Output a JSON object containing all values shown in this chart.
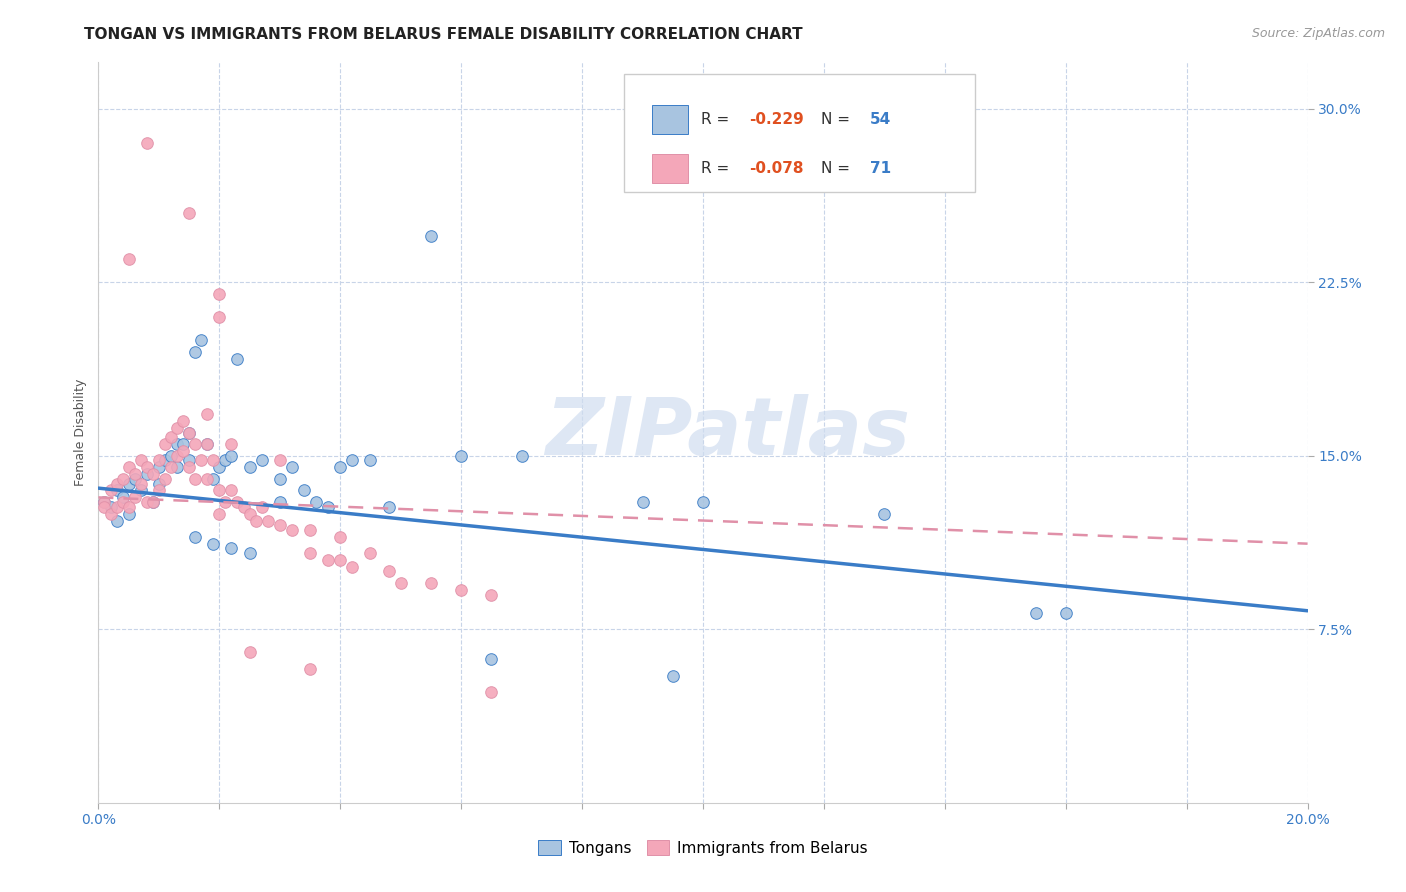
{
  "title": "TONGAN VS IMMIGRANTS FROM BELARUS FEMALE DISABILITY CORRELATION CHART",
  "source": "Source: ZipAtlas.com",
  "ylabel": "Female Disability",
  "xlim": [
    0.0,
    0.2
  ],
  "ylim": [
    0.0,
    0.32
  ],
  "yticks": [
    0.075,
    0.15,
    0.225,
    0.3
  ],
  "ytick_labels": [
    "7.5%",
    "15.0%",
    "22.5%",
    "30.0%"
  ],
  "xticks": [
    0.0,
    0.02,
    0.04,
    0.06,
    0.08,
    0.1,
    0.12,
    0.14,
    0.16,
    0.18,
    0.2
  ],
  "blue_R": -0.229,
  "blue_N": 54,
  "pink_R": -0.078,
  "pink_N": 71,
  "blue_color": "#a8c4e0",
  "pink_color": "#f4a7b9",
  "blue_line_color": "#3a7cc7",
  "pink_line_color": "#e090a8",
  "grid_color": "#c8d4e8",
  "background_color": "#ffffff",
  "watermark": "ZIPatlas",
  "legend_labels": [
    "Tongans",
    "Immigrants from Belarus"
  ],
  "title_fontsize": 11,
  "axis_label_fontsize": 9,
  "tick_fontsize": 10,
  "source_fontsize": 9,
  "blue_line_y0": 0.136,
  "blue_line_y1": 0.083,
  "pink_line_y0": 0.132,
  "pink_line_y1": 0.112
}
